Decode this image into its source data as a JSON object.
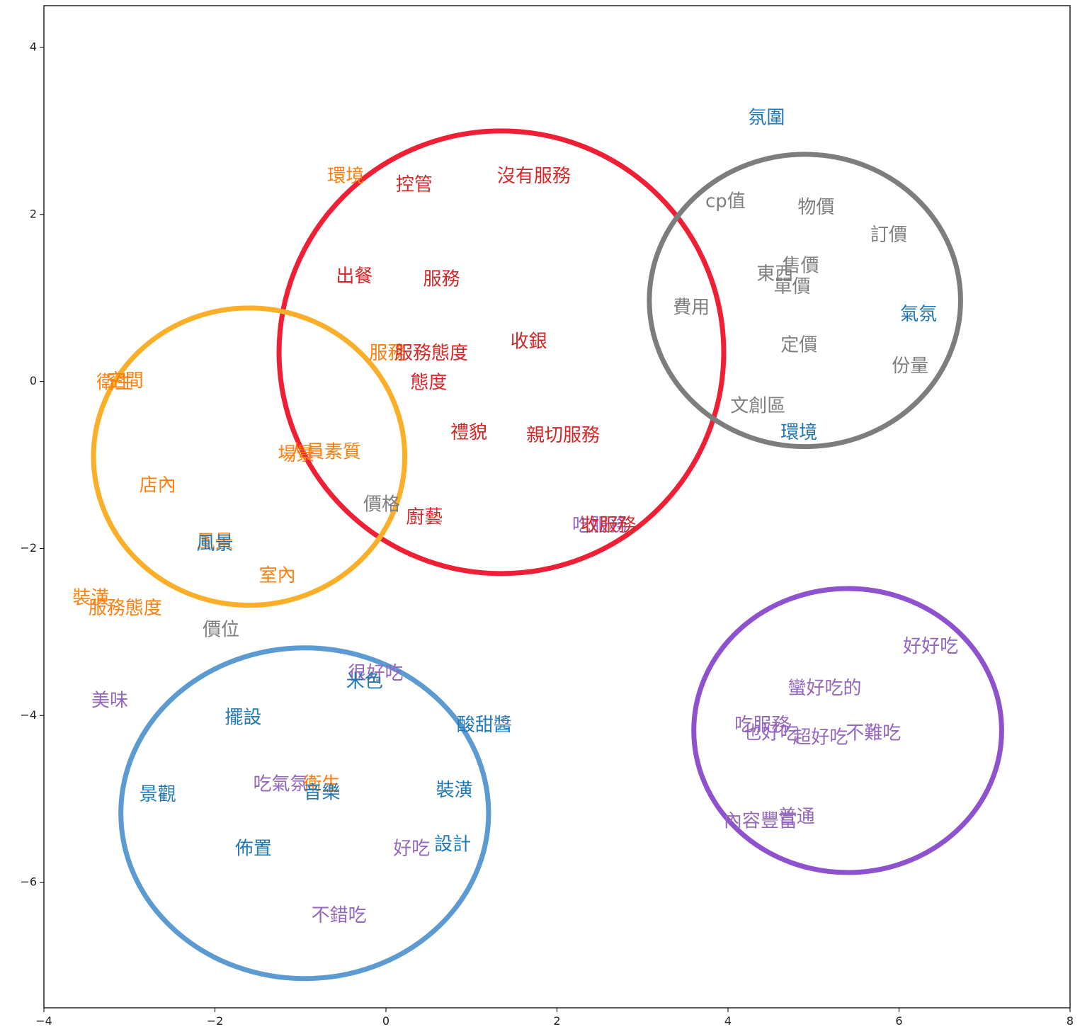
{
  "chart_data": {
    "type": "scatter",
    "title": "",
    "xlabel": "",
    "ylabel": "",
    "xlim": [
      -4,
      8
    ],
    "ylim": [
      -7.5,
      4.5
    ],
    "grid": false,
    "x_ticks": [
      -4,
      -2,
      0,
      2,
      4,
      6,
      8
    ],
    "y_ticks": [
      4,
      2,
      0,
      -2,
      -4,
      -6
    ],
    "x_tick_labels": [
      "−4",
      "−2",
      "0",
      "2",
      "4",
      "6",
      "8"
    ],
    "y_tick_labels": [
      "4",
      "2",
      "0",
      "−2",
      "−4",
      "−6"
    ],
    "colors": {
      "red": "#d62728",
      "orange": "#ff7f0e",
      "gray": "#7f7f7f",
      "blue": "#1f77b4",
      "purple": "#9467bd"
    },
    "clusters": [
      {
        "color": "#ef2035",
        "cx": 1.35,
        "cy": 0.35,
        "rx": 2.6,
        "ry": 2.65
      },
      {
        "color": "#fbae28",
        "cx": -1.6,
        "cy": -0.9,
        "rx": 1.82,
        "ry": 1.78
      },
      {
        "color": "#7d7d7d",
        "cx": 4.9,
        "cy": 0.97,
        "rx": 1.82,
        "ry": 1.75
      },
      {
        "color": "#5b9bd1",
        "cx": -0.95,
        "cy": -5.17,
        "rx": 2.15,
        "ry": 1.98
      },
      {
        "color": "#8e52cf",
        "cx": 5.4,
        "cy": -4.18,
        "rx": 1.8,
        "ry": 1.7
      }
    ],
    "points": [
      {
        "label": "氛圍",
        "x": 4.45,
        "y": 3.15,
        "color": "blue"
      },
      {
        "label": "環境",
        "x": -0.47,
        "y": 2.45,
        "color": "orange"
      },
      {
        "label": "控管",
        "x": 0.33,
        "y": 2.35,
        "color": "red"
      },
      {
        "label": "沒有服務",
        "x": 1.73,
        "y": 2.45,
        "color": "red"
      },
      {
        "label": "cp值",
        "x": 3.97,
        "y": 2.15,
        "color": "gray"
      },
      {
        "label": "物價",
        "x": 5.03,
        "y": 2.08,
        "color": "gray"
      },
      {
        "label": "訂價",
        "x": 5.88,
        "y": 1.75,
        "color": "gray"
      },
      {
        "label": "售價",
        "x": 4.85,
        "y": 1.38,
        "color": "gray"
      },
      {
        "label": "東西",
        "x": 4.55,
        "y": 1.28,
        "color": "gray"
      },
      {
        "label": "單價",
        "x": 4.75,
        "y": 1.13,
        "color": "gray"
      },
      {
        "label": "費用",
        "x": 3.57,
        "y": 0.88,
        "color": "gray"
      },
      {
        "label": "氣氛",
        "x": 6.23,
        "y": 0.8,
        "color": "blue"
      },
      {
        "label": "出餐",
        "x": -0.37,
        "y": 1.25,
        "color": "red"
      },
      {
        "label": "服務",
        "x": 0.65,
        "y": 1.22,
        "color": "red"
      },
      {
        "label": "收銀",
        "x": 1.67,
        "y": 0.47,
        "color": "red"
      },
      {
        "label": "定價",
        "x": 4.83,
        "y": 0.43,
        "color": "gray"
      },
      {
        "label": "服務",
        "x": 0.02,
        "y": 0.33,
        "color": "orange"
      },
      {
        "label": "服務態度",
        "x": 0.53,
        "y": 0.33,
        "color": "red"
      },
      {
        "label": "份量",
        "x": 6.13,
        "y": 0.18,
        "color": "gray"
      },
      {
        "label": "態度",
        "x": 0.5,
        "y": -0.02,
        "color": "red"
      },
      {
        "label": "衛生",
        "x": -3.17,
        "y": -0.02,
        "color": "orange"
      },
      {
        "label": "空間",
        "x": -3.05,
        "y": 0.0,
        "color": "orange"
      },
      {
        "label": "文創區",
        "x": 4.35,
        "y": -0.3,
        "color": "gray"
      },
      {
        "label": "環境",
        "x": 4.83,
        "y": -0.62,
        "color": "blue"
      },
      {
        "label": "禮貌",
        "x": 0.97,
        "y": -0.62,
        "color": "red"
      },
      {
        "label": "親切服務",
        "x": 2.07,
        "y": -0.65,
        "color": "red"
      },
      {
        "label": "場景",
        "x": -1.05,
        "y": -0.88,
        "color": "orange"
      },
      {
        "label": "人員素質",
        "x": -0.72,
        "y": -0.85,
        "color": "orange"
      },
      {
        "label": "店內",
        "x": -2.67,
        "y": -1.25,
        "color": "orange"
      },
      {
        "label": "價格",
        "x": -0.05,
        "y": -1.48,
        "color": "gray"
      },
      {
        "label": "廚藝",
        "x": 0.45,
        "y": -1.63,
        "color": "red"
      },
      {
        "label": "吃服務",
        "x": 2.5,
        "y": -1.73,
        "color": "purple"
      },
      {
        "label": "收服務",
        "x": 2.6,
        "y": -1.73,
        "color": "red"
      },
      {
        "label": "風景",
        "x": -2.0,
        "y": -1.93,
        "color": "orange"
      },
      {
        "label": "風景",
        "x": -2.0,
        "y": -1.95,
        "color": "blue"
      },
      {
        "label": "室內",
        "x": -1.27,
        "y": -2.33,
        "color": "orange"
      },
      {
        "label": "裝潢",
        "x": -3.45,
        "y": -2.6,
        "color": "orange"
      },
      {
        "label": "服務態度",
        "x": -3.05,
        "y": -2.72,
        "color": "orange"
      },
      {
        "label": "價位",
        "x": -1.93,
        "y": -2.98,
        "color": "gray"
      },
      {
        "label": "好好吃",
        "x": 6.37,
        "y": -3.18,
        "color": "purple"
      },
      {
        "label": "很好吃",
        "x": -0.12,
        "y": -3.5,
        "color": "purple"
      },
      {
        "label": "米色",
        "x": -0.25,
        "y": -3.6,
        "color": "blue"
      },
      {
        "label": "蠻好吃的",
        "x": 5.13,
        "y": -3.68,
        "color": "purple"
      },
      {
        "label": "美味",
        "x": -3.23,
        "y": -3.83,
        "color": "purple"
      },
      {
        "label": "擺設",
        "x": -1.67,
        "y": -4.03,
        "color": "blue"
      },
      {
        "label": "酸甜醬",
        "x": 1.15,
        "y": -4.12,
        "color": "blue"
      },
      {
        "label": "吃服務",
        "x": 4.4,
        "y": -4.12,
        "color": "purple"
      },
      {
        "label": "也好吃",
        "x": 4.5,
        "y": -4.22,
        "color": "purple"
      },
      {
        "label": "超好吃",
        "x": 5.08,
        "y": -4.27,
        "color": "purple"
      },
      {
        "label": "不難吃",
        "x": 5.7,
        "y": -4.22,
        "color": "purple"
      },
      {
        "label": "吃氣氛",
        "x": -1.23,
        "y": -4.83,
        "color": "purple"
      },
      {
        "label": "衛生",
        "x": -0.75,
        "y": -4.83,
        "color": "orange"
      },
      {
        "label": "音樂",
        "x": -0.75,
        "y": -4.93,
        "color": "blue"
      },
      {
        "label": "景觀",
        "x": -2.67,
        "y": -4.95,
        "color": "blue"
      },
      {
        "label": "裝潢",
        "x": 0.8,
        "y": -4.9,
        "color": "blue"
      },
      {
        "label": "內容豐富",
        "x": 4.38,
        "y": -5.27,
        "color": "purple"
      },
      {
        "label": "普通",
        "x": 4.8,
        "y": -5.22,
        "color": "purple"
      },
      {
        "label": "佈置",
        "x": -1.55,
        "y": -5.6,
        "color": "blue"
      },
      {
        "label": "好吃",
        "x": 0.3,
        "y": -5.6,
        "color": "purple"
      },
      {
        "label": "設計",
        "x": 0.78,
        "y": -5.55,
        "color": "blue"
      },
      {
        "label": "不錯吃",
        "x": -0.55,
        "y": -6.4,
        "color": "purple"
      }
    ]
  }
}
